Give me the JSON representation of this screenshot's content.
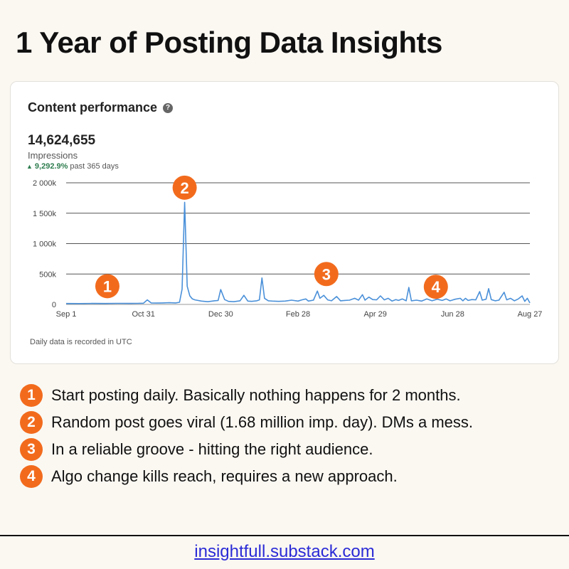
{
  "page_title": "1 Year of Posting Data Insights",
  "card": {
    "title": "Content performance",
    "help_icon": "question-circle-icon",
    "total": "14,624,655",
    "metric": "Impressions",
    "change_value": "9,292.9%",
    "change_period": "past 365 days",
    "footnote": "Daily data is recorded in UTC"
  },
  "chart_data": {
    "type": "line",
    "ylim": [
      0,
      2000000
    ],
    "ytick_values": [
      0,
      500000,
      1000000,
      1500000,
      2000000
    ],
    "ytick_labels": [
      "0",
      "500k",
      "1 000k",
      "1 500k",
      "2 000k"
    ],
    "xtick_labels": [
      "Sep 1",
      "Oct 31",
      "Dec 30",
      "Feb 28",
      "Apr 29",
      "Jun 28",
      "Aug 27"
    ],
    "x_range_days": [
      0,
      360
    ],
    "grid": "horizontal",
    "line_color": "#4a90d9",
    "points": [
      [
        0,
        15000
      ],
      [
        10,
        14000
      ],
      [
        20,
        16000
      ],
      [
        30,
        15000
      ],
      [
        40,
        17000
      ],
      [
        50,
        16000
      ],
      [
        55,
        18000
      ],
      [
        60,
        20000
      ],
      [
        63,
        75000
      ],
      [
        66,
        25000
      ],
      [
        70,
        22000
      ],
      [
        75,
        25000
      ],
      [
        80,
        28000
      ],
      [
        85,
        24000
      ],
      [
        88,
        35000
      ],
      [
        90,
        250000
      ],
      [
        92,
        1680000
      ],
      [
        94,
        300000
      ],
      [
        96,
        140000
      ],
      [
        98,
        90000
      ],
      [
        100,
        75000
      ],
      [
        105,
        55000
      ],
      [
        110,
        45000
      ],
      [
        115,
        60000
      ],
      [
        118,
        65000
      ],
      [
        120,
        245000
      ],
      [
        123,
        80000
      ],
      [
        126,
        50000
      ],
      [
        130,
        45000
      ],
      [
        135,
        60000
      ],
      [
        138,
        150000
      ],
      [
        141,
        55000
      ],
      [
        144,
        50000
      ],
      [
        148,
        60000
      ],
      [
        150,
        75000
      ],
      [
        152,
        435000
      ],
      [
        154,
        100000
      ],
      [
        157,
        60000
      ],
      [
        160,
        55000
      ],
      [
        165,
        50000
      ],
      [
        170,
        55000
      ],
      [
        175,
        70000
      ],
      [
        180,
        55000
      ],
      [
        183,
        75000
      ],
      [
        186,
        90000
      ],
      [
        188,
        55000
      ],
      [
        192,
        70000
      ],
      [
        195,
        220000
      ],
      [
        197,
        100000
      ],
      [
        200,
        150000
      ],
      [
        203,
        75000
      ],
      [
        206,
        60000
      ],
      [
        210,
        130000
      ],
      [
        213,
        60000
      ],
      [
        216,
        65000
      ],
      [
        220,
        70000
      ],
      [
        224,
        100000
      ],
      [
        227,
        70000
      ],
      [
        230,
        160000
      ],
      [
        232,
        70000
      ],
      [
        235,
        120000
      ],
      [
        238,
        80000
      ],
      [
        241,
        75000
      ],
      [
        244,
        140000
      ],
      [
        247,
        75000
      ],
      [
        250,
        100000
      ],
      [
        253,
        55000
      ],
      [
        256,
        80000
      ],
      [
        258,
        65000
      ],
      [
        261,
        90000
      ],
      [
        264,
        60000
      ],
      [
        266,
        280000
      ],
      [
        268,
        60000
      ],
      [
        272,
        70000
      ],
      [
        276,
        55000
      ],
      [
        280,
        90000
      ],
      [
        284,
        60000
      ],
      [
        288,
        85000
      ],
      [
        292,
        65000
      ],
      [
        295,
        90000
      ],
      [
        298,
        60000
      ],
      [
        302,
        85000
      ],
      [
        306,
        100000
      ],
      [
        308,
        60000
      ],
      [
        310,
        100000
      ],
      [
        312,
        65000
      ],
      [
        315,
        80000
      ],
      [
        318,
        75000
      ],
      [
        321,
        210000
      ],
      [
        323,
        70000
      ],
      [
        326,
        85000
      ],
      [
        328,
        260000
      ],
      [
        330,
        80000
      ],
      [
        333,
        60000
      ],
      [
        336,
        70000
      ],
      [
        340,
        200000
      ],
      [
        342,
        75000
      ],
      [
        345,
        100000
      ],
      [
        348,
        60000
      ],
      [
        351,
        90000
      ],
      [
        354,
        140000
      ],
      [
        356,
        50000
      ],
      [
        358,
        100000
      ],
      [
        360,
        25000
      ]
    ],
    "annotations": [
      {
        "label": "1",
        "x": 32,
        "y": 300000
      },
      {
        "label": "2",
        "x": 92,
        "y": 1920000
      },
      {
        "label": "3",
        "x": 202,
        "y": 500000
      },
      {
        "label": "4",
        "x": 287,
        "y": 290000
      }
    ]
  },
  "notes": [
    {
      "num": "1",
      "text": "Start posting daily. Basically nothing happens for 2 months."
    },
    {
      "num": "2",
      "text": "Random post goes viral (1.68 million imp. day). DMs a mess."
    },
    {
      "num": "3",
      "text": "In a reliable groove - hitting the right audience."
    },
    {
      "num": "4",
      "text": "Algo change kills reach, requires a new approach."
    }
  ],
  "footer_link": "insightfull.substack.com"
}
